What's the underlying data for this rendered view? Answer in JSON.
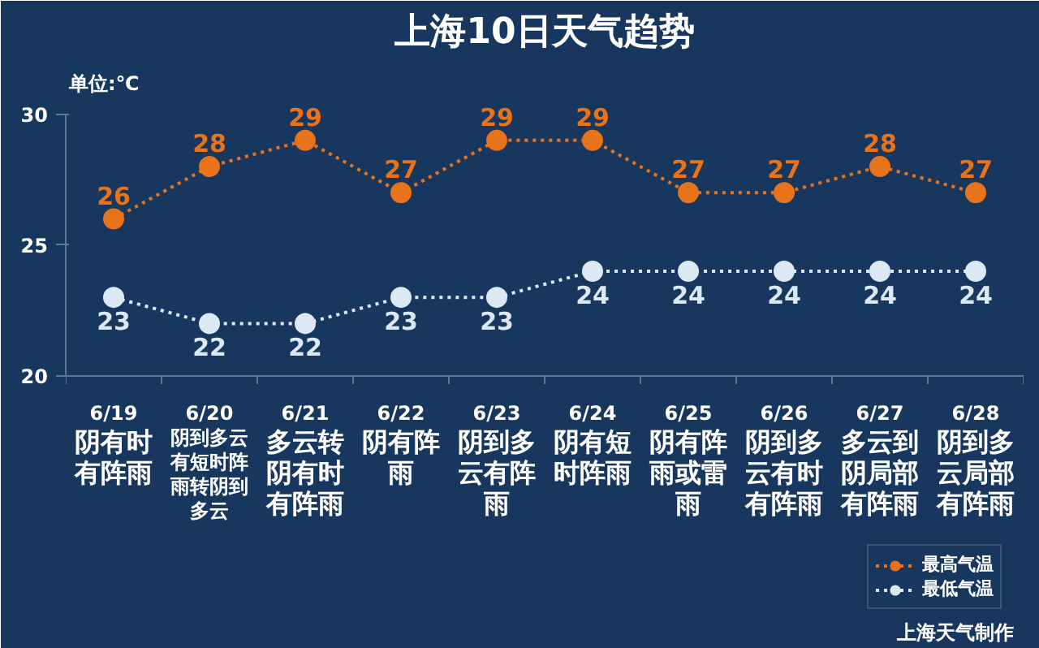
{
  "chart_data": {
    "type": "line",
    "title": "上海10日天气趋势",
    "ylabel": "单位:℃",
    "categories": [
      "6/19",
      "6/20",
      "6/21",
      "6/22",
      "6/23",
      "6/24",
      "6/25",
      "6/26",
      "6/27",
      "6/28"
    ],
    "series": [
      {
        "name": "最高气温",
        "color": "#e8731a",
        "values": [
          26,
          28,
          29,
          27,
          29,
          29,
          27,
          27,
          28,
          27
        ]
      },
      {
        "name": "最低气温",
        "color": "#dce8f3",
        "values": [
          23,
          22,
          22,
          23,
          23,
          24,
          24,
          24,
          24,
          24
        ]
      }
    ],
    "ylim": [
      20,
      30
    ],
    "yticks": [
      20,
      25,
      30
    ],
    "grid": false,
    "legend": "bottom right",
    "marker": "circle",
    "line_style": "dotted",
    "data_labels": true,
    "annotations": [
      "阴有时有阵雨",
      "阴到多云有短时阵雨转阴到多云",
      "多云转阴有时有阵雨",
      "阴有阵雨",
      "阴到多云有阵雨",
      "阴有短时阵雨",
      "阴有阵雨或雷雨",
      "阴到多云有时有阵雨",
      "多云到阴局部有阵雨",
      "阴到多云局部有阵雨",
      "上海天气制作"
    ]
  }
}
